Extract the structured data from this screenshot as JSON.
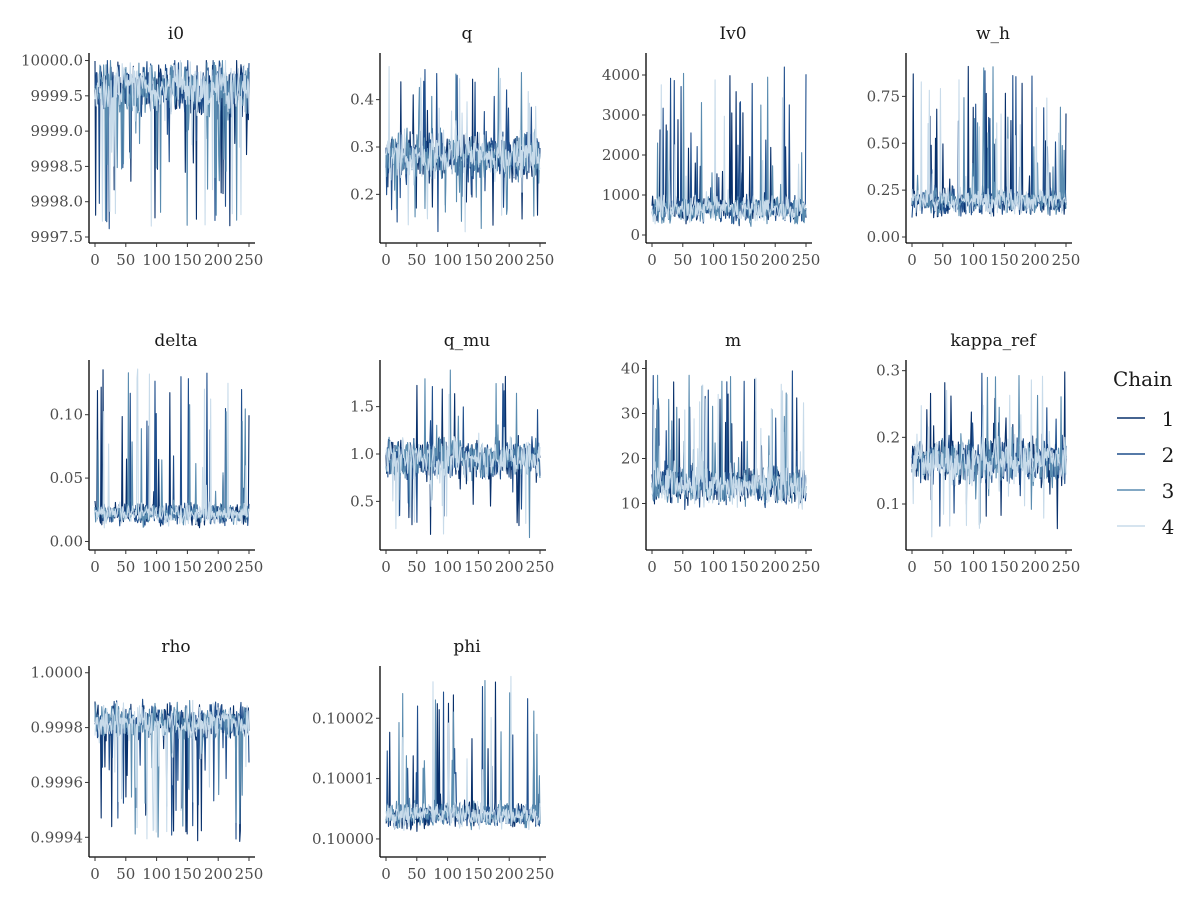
{
  "chart_data": {
    "type": "line",
    "colors": [
      "#08306b",
      "#1f4e8c",
      "#5a8cb0",
      "#c8dbea"
    ],
    "legend": {
      "title": "Chain",
      "position": "right",
      "entries": [
        "1",
        "2",
        "3",
        "4"
      ]
    },
    "x_range": [
      0,
      250
    ],
    "x_ticks": [
      0,
      50,
      100,
      150,
      200,
      250
    ],
    "x_tick_labels": [
      "0",
      "50",
      "100",
      "150",
      "200",
      "250"
    ],
    "grid": false,
    "panels": [
      {
        "title": "i0",
        "ylim": [
          9997.5,
          10000.05
        ],
        "y_ticks": [
          9997.5,
          9998.0,
          9998.5,
          9999.0,
          9999.5,
          10000.0
        ],
        "y_tick_labels": [
          "9997.5",
          "9998.0",
          "9998.5",
          "9999.0",
          "9999.5",
          "10000.0"
        ],
        "series_summary": {
          "center": 9999.6,
          "spread": 0.55,
          "spike_min": 9997.6,
          "spike_max": 10000.0,
          "direction": "down"
        }
      },
      {
        "title": "q",
        "ylim": [
          0.11,
          0.49
        ],
        "y_ticks": [
          0.2,
          0.3,
          0.4
        ],
        "y_tick_labels": [
          "0.2",
          "0.3",
          "0.4"
        ],
        "series_summary": {
          "center": 0.28,
          "spread": 0.07,
          "spike_min": 0.12,
          "spike_max": 0.47,
          "direction": "both"
        }
      },
      {
        "title": "Iv0",
        "ylim": [
          -50,
          4450
        ],
        "y_ticks": [
          0,
          1000,
          2000,
          3000,
          4000
        ],
        "y_tick_labels": [
          "0",
          "1000",
          "2000",
          "3000",
          "4000"
        ],
        "series_summary": {
          "center": 650,
          "spread": 450,
          "spike_min": 100,
          "spike_max": 4200,
          "direction": "up"
        }
      },
      {
        "title": "w_h",
        "ylim": [
          0.0,
          0.96
        ],
        "y_ticks": [
          0.0,
          0.25,
          0.5,
          0.75
        ],
        "y_tick_labels": [
          "0.00",
          "0.25",
          "0.50",
          "0.75"
        ],
        "series_summary": {
          "center": 0.19,
          "spread": 0.1,
          "spike_min": 0.05,
          "spike_max": 0.91,
          "direction": "up"
        }
      },
      {
        "title": "delta",
        "ylim": [
          -0.002,
          0.14
        ],
        "y_ticks": [
          0.0,
          0.05,
          0.1
        ],
        "y_tick_labels": [
          "0.00",
          "0.05",
          "0.10"
        ],
        "series_summary": {
          "center": 0.022,
          "spread": 0.012,
          "spike_min": 0.004,
          "spike_max": 0.136,
          "direction": "up"
        }
      },
      {
        "title": "q_mu",
        "ylim": [
          0.05,
          1.95
        ],
        "y_ticks": [
          0.5,
          1.0,
          1.5
        ],
        "y_tick_labels": [
          "0.5",
          "1.0",
          "1.5"
        ],
        "series_summary": {
          "center": 0.95,
          "spread": 0.3,
          "spike_min": 0.1,
          "spike_max": 1.9,
          "direction": "both"
        }
      },
      {
        "title": "m",
        "ylim": [
          1,
          41
        ],
        "y_ticks": [
          10,
          20,
          30,
          40
        ],
        "y_tick_labels": [
          "10",
          "20",
          "30",
          "40"
        ],
        "series_summary": {
          "center": 14,
          "spread": 6,
          "spike_min": 3,
          "spike_max": 39.5,
          "direction": "up"
        }
      },
      {
        "title": "kappa_ref",
        "ylim": [
          0.04,
          0.31
        ],
        "y_ticks": [
          0.1,
          0.2,
          0.3
        ],
        "y_tick_labels": [
          "0.1",
          "0.2",
          "0.3"
        ],
        "series_summary": {
          "center": 0.165,
          "spread": 0.05,
          "spike_min": 0.05,
          "spike_max": 0.3,
          "direction": "both"
        }
      },
      {
        "title": "rho",
        "ylim": [
          0.99935,
          1.00001
        ],
        "y_ticks": [
          0.9994,
          0.9996,
          0.9998,
          1.0
        ],
        "y_tick_labels": [
          "0.9994",
          "0.9996",
          "0.9998",
          "1.0000"
        ],
        "series_summary": {
          "center": 0.99982,
          "spread": 9e-05,
          "spike_min": 0.99938,
          "spike_max": 0.99998,
          "direction": "down"
        }
      },
      {
        "title": "phi",
        "ylim": [
          0.099998,
          1.000028
        ],
        "y_ticks": [
          0.1,
          0.10001,
          0.10002
        ],
        "y_tick_labels": [
          "0.10000",
          "0.10001",
          "0.10002"
        ],
        "series_summary": {
          "center": 0.100004,
          "spread": 3e-06,
          "spike_min": 0.1,
          "spike_max": 0.100027,
          "direction": "up"
        }
      }
    ]
  }
}
